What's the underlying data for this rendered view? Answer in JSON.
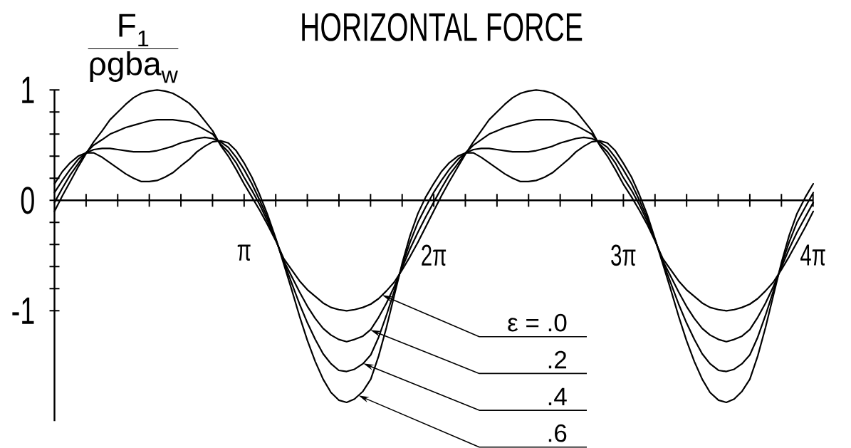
{
  "chart_data": {
    "type": "line",
    "title": "HORIZONTAL FORCE",
    "ylabel": "\\frac{\\text{F}_{\\text{1}}}{\\text{ρgba}_{\\text{w}}}",
    "xlim": [
      0,
      12.57
    ],
    "ylim": [
      -2,
      1
    ],
    "xticks": [
      {
        "value": 3.1416,
        "label": "π"
      },
      {
        "value": 6.2832,
        "label": "2π"
      },
      {
        "value": 9.4248,
        "label": "3π"
      },
      {
        "value": 12.5664,
        "label": "4π"
      }
    ],
    "yticks": [
      -1,
      {
        "value": -0.8,
        "label": null
      },
      {
        "value": -0.6,
        "label": null
      },
      {
        "value": -0.4,
        "label": null
      },
      {
        "value": -0.2,
        "label": null
      },
      0,
      {
        "value": 0.2,
        "label": null
      },
      {
        "value": 0.4,
        "label": null
      },
      {
        "value": 0.6,
        "label": null
      },
      {
        "value": 0.8,
        "label": null
      },
      1
    ],
    "x": [
      0,
      0.13,
      0.26,
      0.39,
      0.52,
      0.65,
      0.79,
      0.92,
      1.05,
      1.18,
      1.31,
      1.44,
      1.57,
      1.7,
      1.83,
      1.96,
      2.09,
      2.23,
      2.36,
      2.49,
      2.62,
      2.75,
      2.88,
      3.01,
      3.14,
      3.27,
      3.4,
      3.53,
      3.67,
      3.8,
      3.93,
      4.06,
      4.19,
      4.32,
      4.45,
      4.58,
      4.71,
      4.84,
      4.97,
      5.11,
      5.24,
      5.37,
      5.5,
      5.63,
      5.76,
      5.89,
      6.02,
      6.15,
      6.28,
      6.41,
      6.54,
      6.68,
      6.81,
      6.94,
      7.07,
      7.2,
      7.33,
      7.46,
      7.59,
      7.72,
      7.85,
      7.98,
      8.12,
      8.25,
      8.38,
      8.51,
      8.64,
      8.77,
      8.9,
      9.03,
      9.16,
      9.29,
      9.42,
      9.56,
      9.69,
      9.82,
      9.95,
      10.08,
      10.21,
      10.34,
      10.47,
      10.6,
      10.73,
      10.86,
      11.0,
      11.13,
      11.26,
      11.39,
      11.52,
      11.65,
      11.78,
      11.91,
      12.04,
      12.17,
      12.3,
      12.44,
      12.57
    ],
    "series": [
      {
        "name": "ε = .0",
        "color": "#000000",
        "values": [
          -0.1,
          0.04,
          0.17,
          0.3,
          0.42,
          0.53,
          0.63,
          0.73,
          0.8,
          0.87,
          0.93,
          0.97,
          0.99,
          1.0,
          0.99,
          0.97,
          0.93,
          0.88,
          0.81,
          0.72,
          0.63,
          0.5,
          0.4,
          0.28,
          0.15,
          0.03,
          -0.09,
          -0.22,
          -0.37,
          -0.53,
          -0.63,
          -0.73,
          -0.81,
          -0.87,
          -0.93,
          -0.97,
          -0.99,
          -1.0,
          -0.99,
          -0.97,
          -0.94,
          -0.89,
          -0.82,
          -0.74,
          -0.63,
          -0.51,
          -0.38,
          -0.24,
          -0.1,
          0.04,
          0.17,
          0.3,
          0.42,
          0.53,
          0.63,
          0.73,
          0.8,
          0.87,
          0.93,
          0.97,
          0.99,
          1.0,
          0.99,
          0.97,
          0.93,
          0.88,
          0.81,
          0.72,
          0.63,
          0.5,
          0.4,
          0.28,
          0.15,
          0.03,
          -0.09,
          -0.22,
          -0.37,
          -0.53,
          -0.63,
          -0.73,
          -0.81,
          -0.87,
          -0.93,
          -0.97,
          -0.99,
          -1.0,
          -0.99,
          -0.97,
          -0.94,
          -0.89,
          -0.82,
          -0.74,
          -0.63,
          -0.51,
          -0.38,
          -0.24,
          -0.1
        ]
      },
      {
        "name": ".2",
        "color": "#000000",
        "values": [
          -0.02,
          0.11,
          0.23,
          0.33,
          0.43,
          0.5,
          0.55,
          0.6,
          0.63,
          0.66,
          0.68,
          0.7,
          0.72,
          0.73,
          0.73,
          0.73,
          0.72,
          0.71,
          0.68,
          0.64,
          0.6,
          0.51,
          0.44,
          0.34,
          0.21,
          0.09,
          -0.04,
          -0.19,
          -0.36,
          -0.55,
          -0.69,
          -0.83,
          -0.96,
          -1.07,
          -1.16,
          -1.22,
          -1.26,
          -1.28,
          -1.26,
          -1.23,
          -1.17,
          -1.06,
          -0.93,
          -0.78,
          -0.61,
          -0.44,
          -0.29,
          -0.15,
          -0.02,
          0.11,
          0.23,
          0.33,
          0.43,
          0.5,
          0.55,
          0.6,
          0.63,
          0.66,
          0.68,
          0.7,
          0.72,
          0.73,
          0.73,
          0.73,
          0.72,
          0.71,
          0.68,
          0.64,
          0.6,
          0.51,
          0.44,
          0.34,
          0.21,
          0.09,
          -0.04,
          -0.19,
          -0.36,
          -0.55,
          -0.69,
          -0.83,
          -0.96,
          -1.07,
          -1.16,
          -1.22,
          -1.26,
          -1.28,
          -1.26,
          -1.23,
          -1.17,
          -1.06,
          -0.93,
          -0.78,
          -0.61,
          -0.44,
          -0.29,
          -0.15,
          -0.02
        ]
      },
      {
        "name": ".4",
        "color": "#000000",
        "values": [
          0.07,
          0.18,
          0.28,
          0.37,
          0.43,
          0.46,
          0.47,
          0.47,
          0.46,
          0.45,
          0.44,
          0.44,
          0.44,
          0.45,
          0.47,
          0.49,
          0.52,
          0.54,
          0.56,
          0.57,
          0.56,
          0.53,
          0.48,
          0.39,
          0.28,
          0.15,
          0.0,
          -0.16,
          -0.36,
          -0.56,
          -0.75,
          -0.94,
          -1.11,
          -1.26,
          -1.39,
          -1.48,
          -1.54,
          -1.55,
          -1.53,
          -1.48,
          -1.4,
          -1.24,
          -1.04,
          -0.82,
          -0.59,
          -0.38,
          -0.2,
          -0.06,
          0.07,
          0.18,
          0.28,
          0.37,
          0.43,
          0.46,
          0.47,
          0.47,
          0.46,
          0.45,
          0.44,
          0.44,
          0.44,
          0.45,
          0.47,
          0.49,
          0.52,
          0.54,
          0.56,
          0.57,
          0.56,
          0.53,
          0.48,
          0.39,
          0.28,
          0.15,
          0.0,
          -0.16,
          -0.36,
          -0.56,
          -0.75,
          -0.94,
          -1.11,
          -1.26,
          -1.39,
          -1.48,
          -1.54,
          -1.55,
          -1.53,
          -1.48,
          -1.4,
          -1.24,
          -1.04,
          -0.82,
          -0.59,
          -0.38,
          -0.2,
          -0.06,
          0.07
        ]
      },
      {
        "name": ".6",
        "color": "#000000",
        "values": [
          0.15,
          0.26,
          0.34,
          0.4,
          0.43,
          0.43,
          0.39,
          0.34,
          0.29,
          0.24,
          0.2,
          0.17,
          0.17,
          0.18,
          0.21,
          0.25,
          0.31,
          0.37,
          0.44,
          0.49,
          0.53,
          0.54,
          0.52,
          0.45,
          0.34,
          0.21,
          0.05,
          -0.13,
          -0.35,
          -0.58,
          -0.81,
          -1.05,
          -1.27,
          -1.46,
          -1.62,
          -1.74,
          -1.81,
          -1.83,
          -1.8,
          -1.73,
          -1.62,
          -1.41,
          -1.15,
          -0.86,
          -0.57,
          -0.32,
          -0.12,
          0.03,
          0.15,
          0.26,
          0.34,
          0.4,
          0.43,
          0.43,
          0.39,
          0.34,
          0.29,
          0.24,
          0.2,
          0.17,
          0.17,
          0.18,
          0.21,
          0.25,
          0.31,
          0.37,
          0.44,
          0.49,
          0.53,
          0.54,
          0.52,
          0.45,
          0.34,
          0.21,
          0.05,
          -0.13,
          -0.35,
          -0.58,
          -0.81,
          -1.05,
          -1.27,
          -1.46,
          -1.62,
          -1.74,
          -1.81,
          -1.83,
          -1.8,
          -1.73,
          -1.62,
          -1.41,
          -1.15,
          -0.86,
          -0.57,
          -0.32,
          -0.12,
          0.03,
          0.15
        ]
      }
    ]
  }
}
